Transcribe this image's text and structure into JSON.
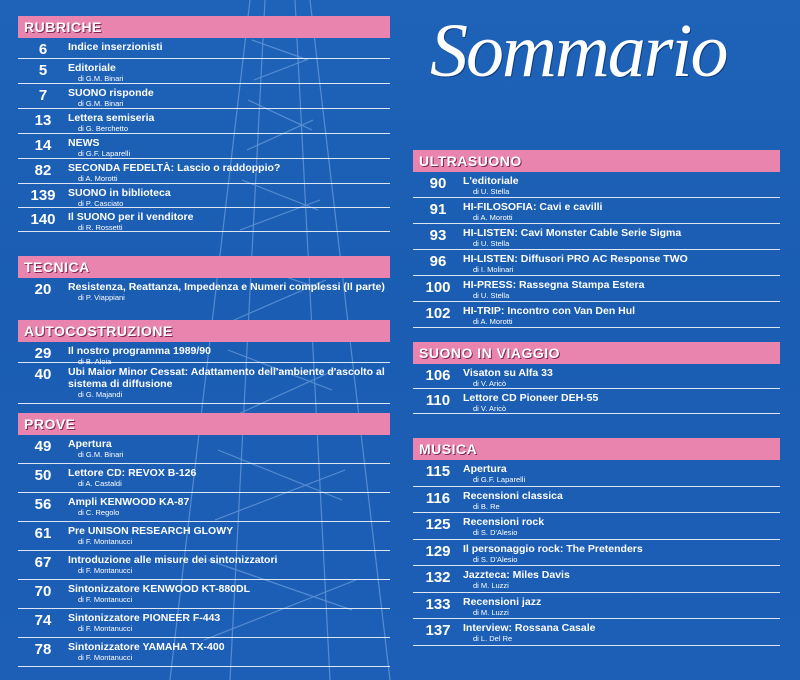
{
  "masthead": "Sommario",
  "rubriche": {
    "header": "RUBRICHE",
    "items": [
      {
        "page": "6",
        "title": "Indice inserzionisti",
        "author": ""
      },
      {
        "page": "5",
        "title": "Editoriale",
        "author": "di G.M. Binari"
      },
      {
        "page": "7",
        "title": "SUONO risponde",
        "author": "di G.M. Binari"
      },
      {
        "page": "13",
        "title": "Lettera semiseria",
        "author": "di G. Berchetto"
      },
      {
        "page": "14",
        "title": "NEWS",
        "author": "di G.F. Laparelli"
      },
      {
        "page": "82",
        "title": "SECONDA FEDELTÀ: Lascio o raddoppio?",
        "author": "di A. Morotti"
      },
      {
        "page": "139",
        "title": "SUONO in biblioteca",
        "author": "di P. Casciato"
      },
      {
        "page": "140",
        "title": "Il SUONO per il venditore",
        "author": "di R. Rossetti"
      }
    ]
  },
  "tecnica": {
    "header": "TECNICA",
    "items": [
      {
        "page": "20",
        "title": "Resistenza, Reattanza, Impedenza e Numeri complessi (Il parte)",
        "author": "di P. Viappiani"
      }
    ]
  },
  "autocostruzione": {
    "header": "AUTOCOSTRUZIONE",
    "items": [
      {
        "page": "29",
        "title": "Il nostro programma 1989/90",
        "author": "di B. Aloia"
      },
      {
        "page": "40",
        "title": "Ubi Maior Minor Cessat: Adattamento dell'ambiente d'ascolto al sistema di diffusione",
        "author": "di G. Majandi"
      }
    ]
  },
  "prove": {
    "header": "PROVE",
    "items": [
      {
        "page": "49",
        "title": "Apertura",
        "author": "di G.M. Binari"
      },
      {
        "page": "50",
        "title": "Lettore CD: REVOX B-126",
        "author": "di A. Castaldi"
      },
      {
        "page": "56",
        "title": "Ampli KENWOOD KA-87",
        "author": "di C. Regolo"
      },
      {
        "page": "61",
        "title": "Pre UNISON RESEARCH GLOWY",
        "author": "di F. Montanucci"
      },
      {
        "page": "67",
        "title": "Introduzione alle misure dei sintonizzatori",
        "author": "di F. Montanucci"
      },
      {
        "page": "70",
        "title": "Sintonizzatore KENWOOD KT-880DL",
        "author": "di F. Montanucci"
      },
      {
        "page": "74",
        "title": "Sintonizzatore PIONEER F-443",
        "author": "di F. Montanucci"
      },
      {
        "page": "78",
        "title": "Sintonizzatore YAMAHA TX-400",
        "author": "di F. Montanucci"
      }
    ]
  },
  "ultrasuono": {
    "header": "ULTRASUONO",
    "items": [
      {
        "page": "90",
        "title": "L'editoriale",
        "author": "di U. Stella"
      },
      {
        "page": "91",
        "title": "HI-FILOSOFIA: Cavi e cavilli",
        "author": "di A. Morotti"
      },
      {
        "page": "93",
        "title": "HI-LISTEN: Cavi Monster Cable Serie Sigma",
        "author": "di U. Stella"
      },
      {
        "page": "96",
        "title": "HI-LISTEN: Diffusori PRO AC Response TWO",
        "author": "di I. Molinari"
      },
      {
        "page": "100",
        "title": "HI-PRESS: Rassegna Stampa Estera",
        "author": "di U. Stella"
      },
      {
        "page": "102",
        "title": "HI-TRIP: Incontro con Van Den Hul",
        "author": "di A. Morotti"
      }
    ]
  },
  "viaggio": {
    "header": "SUONO IN VIAGGIO",
    "items": [
      {
        "page": "106",
        "title": "Visaton su Alfa 33",
        "author": "di V. Aricò"
      },
      {
        "page": "110",
        "title": "Lettore CD Pioneer DEH-55",
        "author": "di V. Aricò"
      }
    ]
  },
  "musica": {
    "header": "MUSICA",
    "items": [
      {
        "page": "115",
        "title": "Apertura",
        "author": "di G.F. Laparelli"
      },
      {
        "page": "116",
        "title": "Recensioni classica",
        "author": "di B. Re"
      },
      {
        "page": "125",
        "title": "Recensioni rock",
        "author": "di S. D'Alesio"
      },
      {
        "page": "129",
        "title": "Il personaggio rock: The Pretenders",
        "author": "di S. D'Alesio"
      },
      {
        "page": "132",
        "title": "Jazzteca: Miles Davis",
        "author": "di M. Luzzi"
      },
      {
        "page": "133",
        "title": "Recensioni jazz",
        "author": "di M. Luzzi"
      },
      {
        "page": "137",
        "title": "Interview: Rossana Casale",
        "author": "di L. Del Re"
      }
    ]
  }
}
